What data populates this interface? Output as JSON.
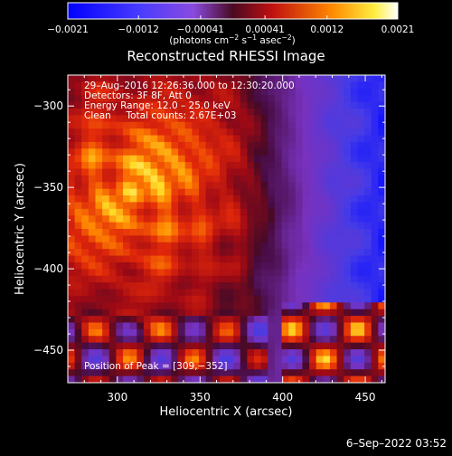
{
  "chart_data": {
    "type": "heatmap",
    "title": "Reconstructed RHESSI Image",
    "xlabel": "Heliocentric X (arcsec)",
    "ylabel": "Heliocentric Y (arcsec)",
    "xlim": [
      270,
      462
    ],
    "ylim": [
      -470,
      -281
    ],
    "x_ticks": [
      300,
      350,
      400,
      450
    ],
    "y_ticks": [
      -300,
      -350,
      -400,
      -450
    ],
    "x_tick_labels": [
      "300",
      "350",
      "400",
      "450"
    ],
    "y_tick_labels": [
      "−300",
      "−350",
      "−400",
      "−450"
    ],
    "colorbar": {
      "ticks": [
        -0.0021,
        -0.0012,
        -0.00041,
        0.00041,
        0.0012,
        0.0021
      ],
      "tick_labels": [
        "−0.0021",
        "−0.0012",
        "−0.00041",
        "0.00041",
        "0.0012",
        "0.0021"
      ],
      "units_prefix": "(photons cm",
      "units_exp1": "−2",
      "units_mid": " s",
      "units_exp2": "−1",
      "units_mid2": " asec",
      "units_exp3": "−2",
      "units_suffix": ")",
      "colormap": "red-temperature with blue negatives"
    },
    "info_lines": [
      "29–Aug–2016 12:26:36.000 to 12:30:20.000",
      "Detectors: 3F 8F, Att 0",
      "Energy Range: 12.0 – 25.0 keV",
      "Clean     Total counts: 2.67E+03"
    ],
    "peak_label": "Position of Peak = [309,−352]",
    "peak": [
      309,
      -352
    ],
    "grid": false
  },
  "timestamp": "6–Sep–2022 03:52"
}
